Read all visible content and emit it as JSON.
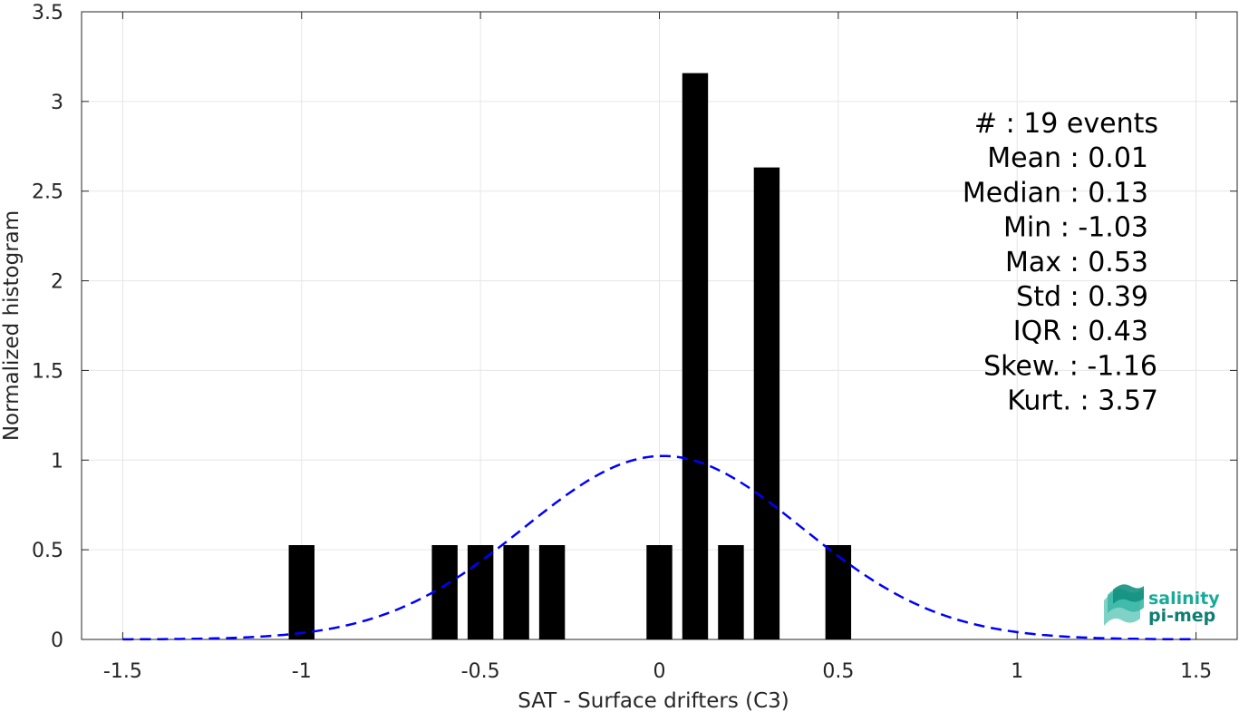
{
  "chart_data": {
    "type": "bar",
    "xlabel": "SAT - Surface drifters (C3)",
    "ylabel": "Normalized histogram",
    "xlim": [
      -1.5,
      1.5
    ],
    "ylim": [
      0,
      3.5
    ],
    "xticks": [
      "-1.5",
      "-1",
      "-0.5",
      "0",
      "0.5",
      "1",
      "1.5"
    ],
    "yticks": [
      "0",
      "0.5",
      "1",
      "1.5",
      "2",
      "2.5",
      "3",
      "3.5"
    ],
    "grid": true,
    "bin_width": 0.1,
    "bars": [
      {
        "x": -1.0,
        "value": 0.526
      },
      {
        "x": -0.6,
        "value": 0.526
      },
      {
        "x": -0.5,
        "value": 0.526
      },
      {
        "x": -0.4,
        "value": 0.526
      },
      {
        "x": -0.3,
        "value": 0.526
      },
      {
        "x": 0.0,
        "value": 0.526
      },
      {
        "x": 0.1,
        "value": 3.158
      },
      {
        "x": 0.2,
        "value": 0.526
      },
      {
        "x": 0.3,
        "value": 2.632
      },
      {
        "x": 0.5,
        "value": 0.526
      }
    ],
    "bar_color": "#000000",
    "fit_curve": {
      "style": "dashed",
      "color": "#0000ff",
      "mean": 0.01,
      "std": 0.39
    },
    "annotations": [
      "#  : 19 events",
      "Mean : 0.01",
      "Median : 0.13",
      "Min : -1.03",
      "Max : 0.53",
      "Std : 0.39",
      "IQR : 0.43",
      "Skew. : -1.16",
      "Kurt. : 3.57"
    ]
  },
  "logo": {
    "line1": "salinity",
    "line2": "pi-mep",
    "color1": "#1aaa9a",
    "color2": "#0f7e72"
  }
}
